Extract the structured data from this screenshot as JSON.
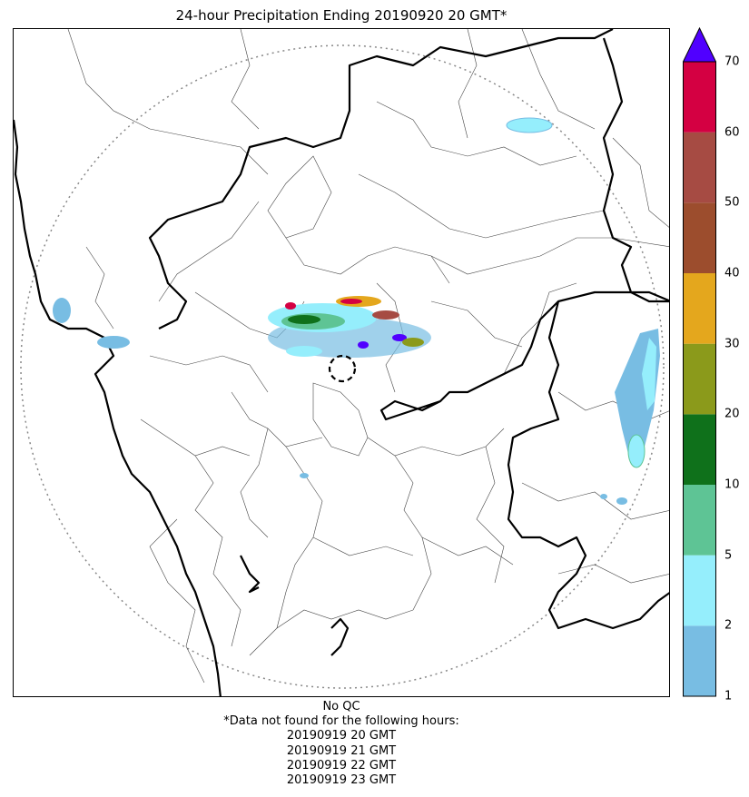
{
  "title": "24-hour Precipitation Ending 20190920 20 GMT*",
  "colorbar": {
    "labels": [
      "1",
      "2",
      "5",
      "10",
      "20",
      "30",
      "40",
      "50",
      "60",
      "70"
    ],
    "colors": [
      "#78bde3",
      "#95eefc",
      "#5ec495",
      "#0f711b",
      "#8b9a1b",
      "#e4a71d",
      "#9c4d2d",
      "#a64b43",
      "#d40042"
    ],
    "extend_color": "#5000ff"
  },
  "footer": {
    "qc": "No QC",
    "note": "*Data not found for the following hours:",
    "hours": [
      "20190919 20 GMT",
      "20190919 21 GMT",
      "20190919 22 GMT",
      "20190919 23 GMT"
    ]
  }
}
